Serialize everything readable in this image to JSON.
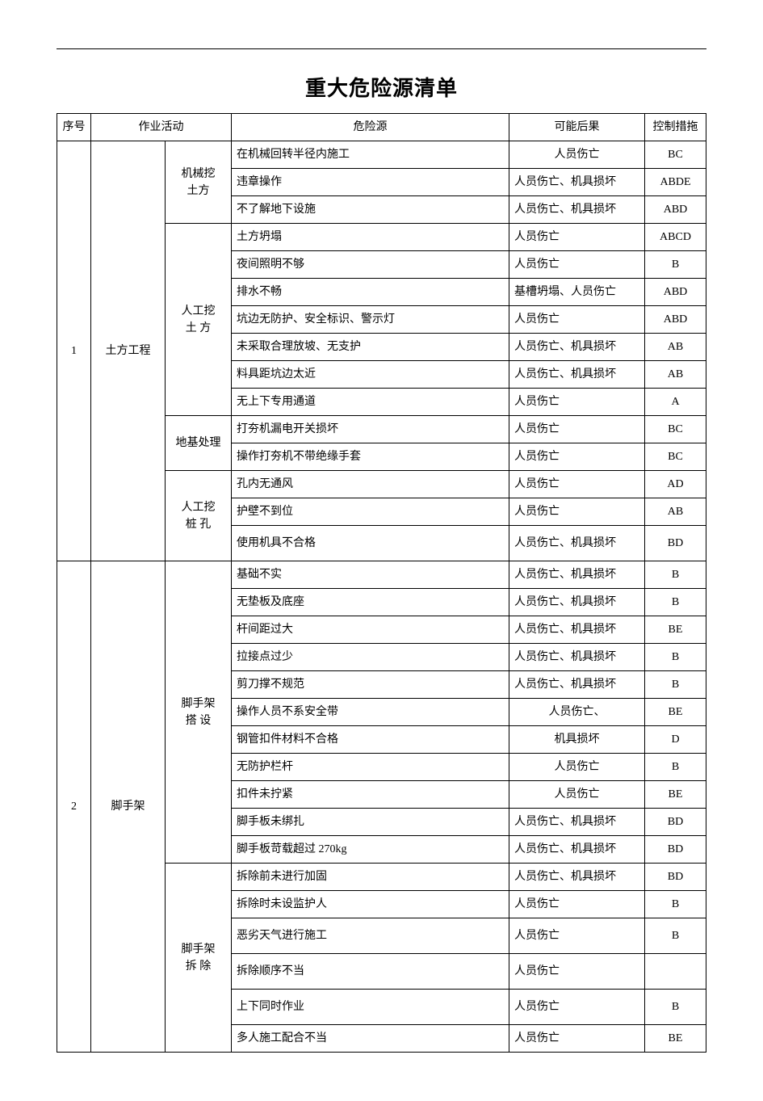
{
  "title": "重大危险源清单",
  "columns": {
    "seq": "序号",
    "activity": "作业活动",
    "hazard": "危险源",
    "result": "可能后果",
    "control": "控制措拖"
  },
  "groups": [
    {
      "seq": "1",
      "activity": "土方工程",
      "subgroups": [
        {
          "name": "机械挖\n土方",
          "rows": [
            {
              "hazard": "在机械回转半径内施工",
              "result": "人员伤亡",
              "result_center": true,
              "control": "BC"
            },
            {
              "hazard": "违章操作",
              "result": "人员伤亡、机具损坏",
              "control": "ABDE"
            },
            {
              "hazard": "不了解地下设施",
              "result": "人员伤亡、机具损坏",
              "control": "ABD"
            }
          ]
        },
        {
          "name": "人工挖\n土 方",
          "rows": [
            {
              "hazard": "土方坍塌",
              "result": "人员伤亡",
              "control": "ABCD"
            },
            {
              "hazard": "夜间照明不够",
              "result": "人员伤亡",
              "control": "B"
            },
            {
              "hazard": "排水不畅",
              "result": "基槽坍塌、人员伤亡",
              "control": "ABD"
            },
            {
              "hazard": "坑边无防护、安全标识、警示灯",
              "result": "人员伤亡",
              "control": "ABD"
            },
            {
              "hazard": "未采取合理放坡、无支护",
              "result": "人员伤亡、机具损坏",
              "control": "AB"
            },
            {
              "hazard": "料具距坑边太近",
              "result": "人员伤亡、机具损坏",
              "control": "AB"
            },
            {
              "hazard": "无上下专用通道",
              "result": "人员伤亡",
              "control": "A"
            }
          ]
        },
        {
          "name": "地基处理",
          "rows": [
            {
              "hazard": "打夯机漏电开关损坏",
              "result": "人员伤亡",
              "control": "BC"
            },
            {
              "hazard": "操作打夯机不带绝缘手套",
              "result": "人员伤亡",
              "control": "BC"
            }
          ]
        },
        {
          "name": "人工挖\n桩 孔",
          "rows": [
            {
              "hazard": "孔内无通风",
              "result": "人员伤亡",
              "control": "AD"
            },
            {
              "hazard": "护壁不到位",
              "result": "人员伤亡",
              "control": "AB"
            },
            {
              "hazard": "使用机具不合格",
              "result": "人员伤亡、机具损坏",
              "control": "BD",
              "tall": true
            }
          ]
        }
      ]
    },
    {
      "seq": "2",
      "activity": "脚手架",
      "subgroups": [
        {
          "name": "脚手架\n搭 设",
          "rows": [
            {
              "hazard": "基础不实",
              "result": "人员伤亡、机具损坏",
              "control": "B"
            },
            {
              "hazard": "无垫板及底座",
              "result": "人员伤亡、机具损坏",
              "control": "B"
            },
            {
              "hazard": "杆间距过大",
              "result": "人员伤亡、机具损坏",
              "control": "BE"
            },
            {
              "hazard": "拉接点过少",
              "result": "人员伤亡、机具损坏",
              "control": "B"
            },
            {
              "hazard": "剪刀撑不规范",
              "result": "人员伤亡、机具损坏",
              "control": "B"
            },
            {
              "hazard": "操作人员不系安全带",
              "result": "人员伤亡、",
              "result_center": true,
              "control": "BE"
            },
            {
              "hazard": "钢管扣件材料不合格",
              "result": "机具损坏",
              "result_center": true,
              "control": "D"
            },
            {
              "hazard": "无防护栏杆",
              "result": "人员伤亡",
              "result_center": true,
              "control": "B"
            },
            {
              "hazard": "扣件未拧紧",
              "result": "人员伤亡",
              "result_center": true,
              "control": "BE"
            },
            {
              "hazard": "脚手板未绑扎",
              "result": "人员伤亡、机具损坏",
              "control": "BD"
            },
            {
              "hazard": "脚手板苛载超过 270kg",
              "result": "人员伤亡、机具损坏",
              "control": "BD"
            }
          ]
        },
        {
          "name": "脚手架\n拆 除",
          "rows": [
            {
              "hazard": "拆除前未进行加固",
              "result": "人员伤亡、机具损坏",
              "control": "BD"
            },
            {
              "hazard": "拆除时未设监护人",
              "result": "人员伤亡",
              "control": "B"
            },
            {
              "hazard": "恶劣天气进行施工",
              "result": "人员伤亡",
              "control": "B",
              "tall": true
            },
            {
              "hazard": "拆除顺序不当",
              "result": "人员伤亡",
              "control": "",
              "tall": true
            },
            {
              "hazard": "上下同时作业",
              "result": "人员伤亡",
              "control": "B",
              "tall": true
            },
            {
              "hazard": "多人施工配合不当",
              "result": "人员伤亡",
              "control": "BE"
            }
          ]
        }
      ]
    }
  ]
}
